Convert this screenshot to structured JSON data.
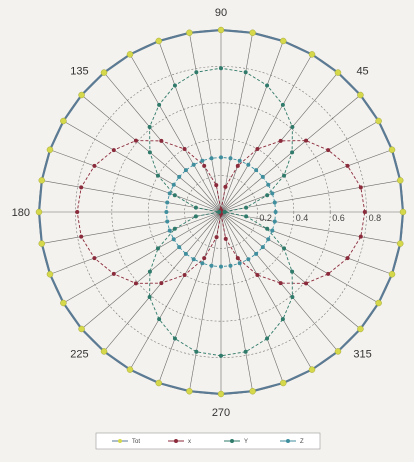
{
  "chart_data": {
    "type": "polar-line",
    "angle_labels": [
      "90",
      "45",
      "180",
      "135",
      "225",
      "270",
      "315"
    ],
    "angle_label_positions_deg": [
      90,
      45,
      180,
      135,
      225,
      270,
      315
    ],
    "radial_tick_labels": [
      "0.2",
      "0.4",
      "0.6",
      "0.8"
    ],
    "radial_ticks": [
      0.2,
      0.4,
      0.6,
      0.8
    ],
    "r_range": [
      0,
      1
    ],
    "spokes_every_deg": 10,
    "grid": true,
    "legend_position": "bottom",
    "theta_deg": [
      0,
      10,
      20,
      30,
      40,
      50,
      60,
      70,
      80,
      90,
      100,
      110,
      120,
      130,
      140,
      150,
      160,
      170,
      180,
      190,
      200,
      210,
      220,
      230,
      240,
      250,
      260,
      270,
      280,
      290,
      300,
      310,
      320,
      330,
      340,
      350
    ],
    "series": [
      {
        "name": "Tot",
        "color": "#d4d84a",
        "line_color": "#5b7a94",
        "values": [
          1.0,
          1.0,
          1.0,
          1.0,
          1.0,
          1.0,
          1.0,
          1.0,
          1.0,
          1.0,
          1.0,
          1.0,
          1.0,
          1.0,
          1.0,
          1.0,
          1.0,
          1.0,
          1.0,
          1.0,
          1.0,
          1.0,
          1.0,
          1.0,
          1.0,
          1.0,
          1.0,
          1.0,
          1.0,
          1.0,
          1.0,
          1.0,
          1.0,
          1.0,
          1.0,
          1.0
        ]
      },
      {
        "name": "x",
        "color": "#8b2a3a",
        "values": [
          0.79,
          0.78,
          0.74,
          0.68,
          0.61,
          0.51,
          0.4,
          0.27,
          0.14,
          0.01,
          0.15,
          0.27,
          0.4,
          0.51,
          0.61,
          0.68,
          0.74,
          0.78,
          0.79,
          0.78,
          0.74,
          0.68,
          0.61,
          0.51,
          0.4,
          0.27,
          0.14,
          0.01,
          0.15,
          0.27,
          0.4,
          0.51,
          0.61,
          0.68,
          0.74,
          0.78
        ]
      },
      {
        "name": "Y",
        "color": "#2f7a6a",
        "values": [
          0.02,
          0.14,
          0.27,
          0.4,
          0.51,
          0.61,
          0.68,
          0.74,
          0.78,
          0.79,
          0.78,
          0.74,
          0.68,
          0.61,
          0.51,
          0.4,
          0.27,
          0.14,
          0.01,
          0.14,
          0.27,
          0.4,
          0.51,
          0.61,
          0.68,
          0.74,
          0.78,
          0.79,
          0.78,
          0.74,
          0.68,
          0.61,
          0.51,
          0.4,
          0.27,
          0.14
        ]
      },
      {
        "name": "Z",
        "color": "#3f8e9e",
        "values": [
          0.3,
          0.3,
          0.3,
          0.3,
          0.3,
          0.3,
          0.3,
          0.3,
          0.3,
          0.3,
          0.3,
          0.3,
          0.3,
          0.3,
          0.3,
          0.3,
          0.3,
          0.3,
          0.3,
          0.3,
          0.3,
          0.3,
          0.3,
          0.3,
          0.3,
          0.3,
          0.3,
          0.3,
          0.3,
          0.3,
          0.3,
          0.3,
          0.3,
          0.3,
          0.3,
          0.3
        ]
      }
    ],
    "legend": [
      "Tot",
      "x",
      "Y",
      "Z"
    ]
  }
}
